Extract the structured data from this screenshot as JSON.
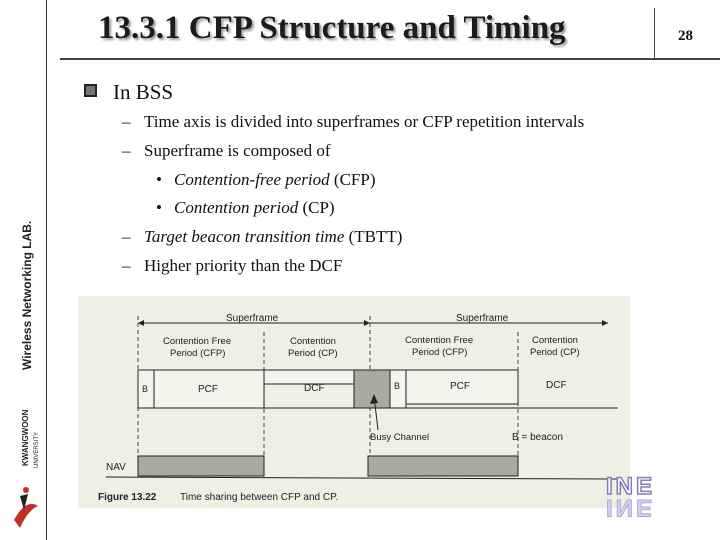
{
  "slide": {
    "title": "13.3.1 CFP Structure and Timing",
    "page_number": "28",
    "sidebar_label": "Wireless Networking LAB.",
    "university_logo": {
      "name": "KWANGWOON",
      "sub": "UNIVERSITY"
    },
    "brand_logo": {
      "text": "INE"
    }
  },
  "content": {
    "bullet": "In BSS",
    "sub1": "Time axis is divided into superframes or CFP repetition intervals",
    "sub2": "Superframe is composed of",
    "item1_italic": "Contention-free period",
    "item1_rest": " (CFP)",
    "item2_italic": "Contention period",
    "item2_rest": " (CP)",
    "sub3_italic": "Target beacon transition time",
    "sub3_rest": " (TBTT)",
    "sub4": "Higher priority than the DCF"
  },
  "figure": {
    "superframe_label": "Superframe",
    "cfp_label_line1": "Contention Free",
    "cfp_label_line2": "Period (CFP)",
    "cp_label_line1": "Contention",
    "cp_label_line2": "Period (CP)",
    "beacon_box": "B",
    "pcf_box": "PCF",
    "dcf_box": "DCF",
    "busy_channel": "Busy Channel",
    "beacon_legend": "B = beacon",
    "nav_label": "NAV",
    "caption_number": "Figure 13.22",
    "caption_text": "Time sharing between CFP and CP.",
    "colors": {
      "paper": "#efefe4",
      "shaded": "#a9a99e",
      "ink": "#222222"
    }
  }
}
